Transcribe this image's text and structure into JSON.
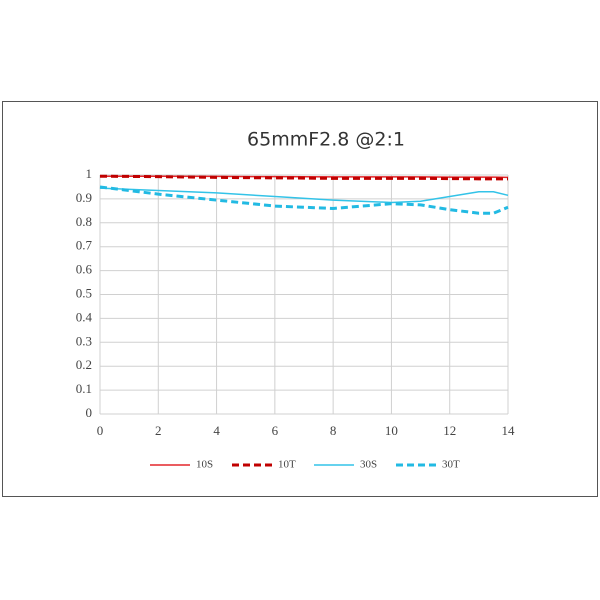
{
  "chart_data": {
    "type": "line",
    "title": "65mmF2.8 @2:1",
    "x": [
      0,
      2,
      4,
      6,
      8,
      10,
      11,
      12,
      13,
      13.5,
      14
    ],
    "series": [
      {
        "name": "10S",
        "color": "#e3262b",
        "dashed": false,
        "values": [
          0.995,
          0.995,
          0.994,
          0.993,
          0.992,
          0.992,
          0.992,
          0.991,
          0.991,
          0.991,
          0.99
        ]
      },
      {
        "name": "10T",
        "color": "#c00000",
        "dashed": true,
        "values": [
          0.995,
          0.993,
          0.99,
          0.988,
          0.986,
          0.986,
          0.986,
          0.985,
          0.984,
          0.984,
          0.984
        ]
      },
      {
        "name": "30S",
        "color": "#33c3e8",
        "dashed": false,
        "values": [
          0.945,
          0.935,
          0.925,
          0.91,
          0.895,
          0.885,
          0.89,
          0.91,
          0.93,
          0.93,
          0.915
        ]
      },
      {
        "name": "30T",
        "color": "#22bae3",
        "dashed": true,
        "values": [
          0.95,
          0.92,
          0.895,
          0.87,
          0.86,
          0.88,
          0.875,
          0.855,
          0.84,
          0.84,
          0.865
        ]
      }
    ],
    "xlim": [
      0,
      14
    ],
    "xticks": [
      0,
      2,
      4,
      6,
      8,
      10,
      12,
      14
    ],
    "ylim": [
      0,
      1
    ],
    "yticks": [
      0,
      0.1,
      0.2,
      0.3,
      0.4,
      0.5,
      0.6,
      0.7,
      0.8,
      0.9,
      1
    ],
    "grid": true
  }
}
